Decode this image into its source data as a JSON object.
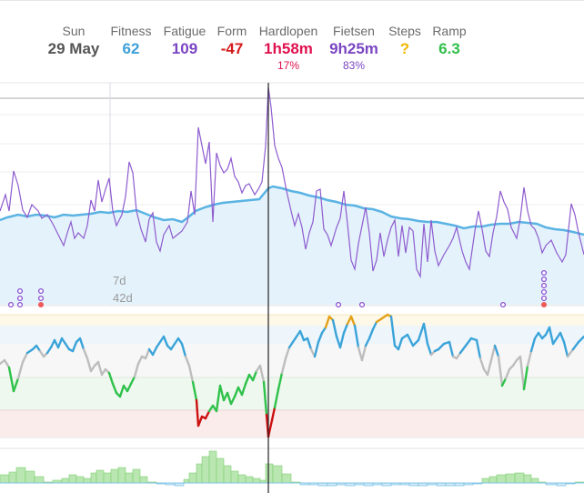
{
  "header": {
    "date": {
      "label": "Sun",
      "value": "29 May"
    },
    "fitness": {
      "label": "Fitness",
      "value": "62",
      "color": "#3ea0d8"
    },
    "fatigue": {
      "label": "Fatigue",
      "value": "109",
      "color": "#7a45c2"
    },
    "form": {
      "label": "Form",
      "value": "-47",
      "color": "#d41b1b"
    },
    "running": {
      "label": "Hardlopen",
      "value": "1h58m",
      "sub": "17%",
      "color": "#e0114f"
    },
    "cycling": {
      "label": "Fietsen",
      "value": "9h25m",
      "sub": "83%",
      "color": "#7a45c2"
    },
    "steps": {
      "label": "Steps",
      "value": "?",
      "color": "#efb800"
    },
    "ramp": {
      "label": "Ramp",
      "value": "6.3",
      "color": "#2fbf4a"
    }
  },
  "chart_labels": {
    "short_window": "7d",
    "long_window": "42d"
  },
  "colors": {
    "fitness_line": "#5ab3e3",
    "fatigue_line": "#8e5ccf",
    "form_blue": "#3aa3d9",
    "form_grey": "#bdbdbd",
    "form_green": "#2ec24a",
    "form_red": "#cc1010",
    "form_orange": "#e3a11a",
    "ramp_green": "#b9e6b1",
    "ramp_blue": "#cfe9f7"
  }
}
